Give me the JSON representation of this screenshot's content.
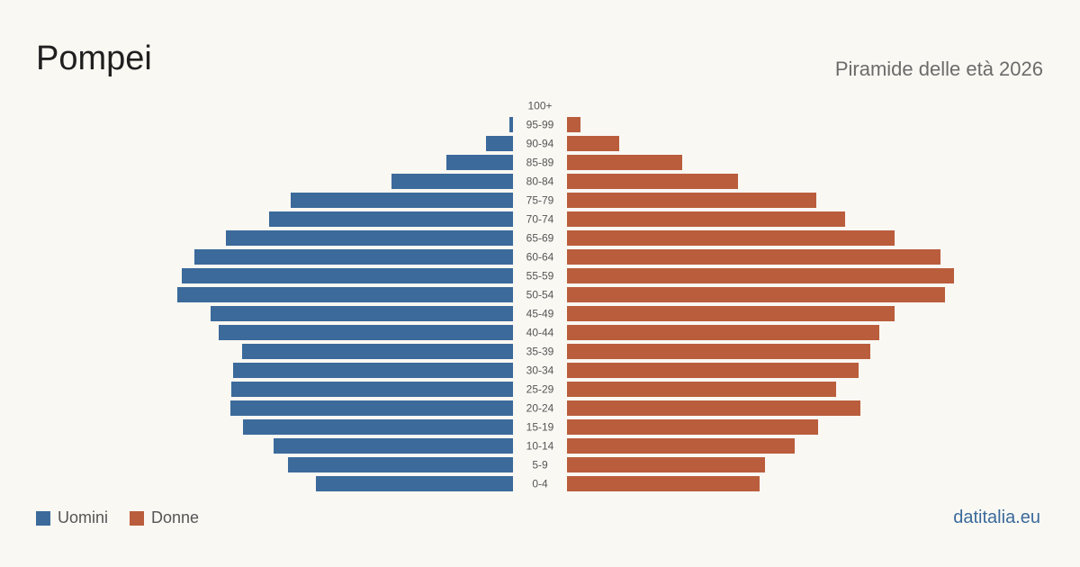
{
  "header": {
    "title": "Pompei",
    "subtitle": "Piramide delle età 2026"
  },
  "legend": {
    "men_label": "Uomini",
    "women_label": "Donne"
  },
  "footer": {
    "brand": "datitalia.eu"
  },
  "colors": {
    "men": "#3b6a9b",
    "women": "#ba5d3c"
  },
  "chart_data": {
    "type": "bar",
    "orientation": "horizontal-pyramid",
    "categories": [
      "100+",
      "95-99",
      "90-94",
      "85-89",
      "80-84",
      "75-79",
      "70-74",
      "65-69",
      "60-64",
      "55-59",
      "50-54",
      "45-49",
      "40-44",
      "35-39",
      "30-34",
      "25-29",
      "20-24",
      "15-19",
      "10-14",
      "5-9",
      "0-4"
    ],
    "series": [
      {
        "name": "Uomini",
        "values": [
          0,
          4,
          30,
          74,
          135,
          247,
          271,
          319,
          354,
          368,
          373,
          336,
          327,
          301,
          311,
          313,
          314,
          300,
          266,
          250,
          219
        ]
      },
      {
        "name": "Donne",
        "values": [
          0,
          15,
          58,
          128,
          190,
          277,
          309,
          364,
          415,
          430,
          420,
          364,
          347,
          337,
          324,
          299,
          326,
          279,
          253,
          220,
          214
        ]
      }
    ],
    "xlim": [
      0,
      430
    ],
    "grid": false,
    "legend_position": "bottom-left"
  }
}
